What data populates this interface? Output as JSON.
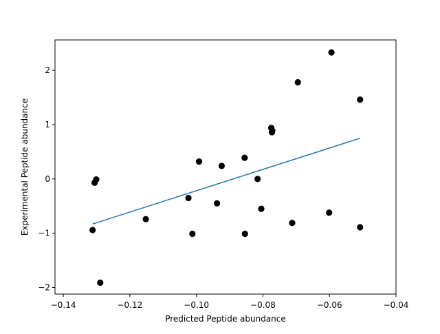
{
  "chart_data": {
    "type": "scatter",
    "title": "",
    "xlabel": "Predicted Peptide abundance",
    "ylabel": "Experimental Peptide abundance",
    "xlim": [
      -0.1425,
      -0.04
    ],
    "ylim": [
      -2.12,
      2.56
    ],
    "x_ticks": [
      -0.14,
      -0.12,
      -0.1,
      -0.08,
      -0.06,
      -0.04
    ],
    "x_tick_labels": [
      "−0.14",
      "−0.12",
      "−0.10",
      "−0.08",
      "−0.06",
      "−0.04"
    ],
    "y_ticks": [
      -2,
      -1,
      0,
      1,
      2
    ],
    "y_tick_labels": [
      "−2",
      "−1",
      "0",
      "1",
      "2"
    ],
    "grid": false,
    "legend": "none",
    "series": [
      {
        "kind": "points",
        "color": "#000000",
        "x": [
          -0.1312,
          -0.1306,
          -0.1301,
          -0.1289,
          -0.1152,
          -0.1024,
          -0.1012,
          -0.0992,
          -0.0938,
          -0.0924,
          -0.0855,
          -0.0854,
          -0.0816,
          -0.0805,
          -0.0775,
          -0.0773,
          -0.0772,
          -0.0712,
          -0.0695,
          -0.0601,
          -0.0594,
          -0.0508,
          -0.0508
        ],
        "y": [
          -0.94,
          -0.07,
          -0.01,
          -1.91,
          -0.74,
          -0.35,
          -1.01,
          0.32,
          -0.45,
          0.24,
          0.39,
          -1.01,
          0.0,
          -0.55,
          0.94,
          0.86,
          0.89,
          -0.81,
          1.78,
          -0.62,
          2.33,
          1.46,
          -0.89
        ]
      },
      {
        "kind": "fit-line",
        "color": "#1f77b4",
        "x": [
          -0.1312,
          -0.0508
        ],
        "y": [
          -0.83,
          0.75
        ]
      }
    ]
  }
}
